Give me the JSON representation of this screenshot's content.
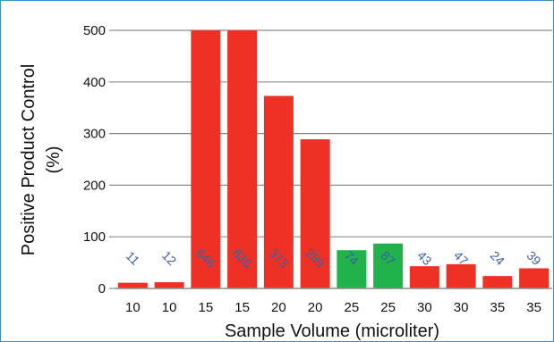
{
  "chart_data": {
    "type": "bar",
    "categories": [
      "10",
      "10",
      "15",
      "15",
      "20",
      "20",
      "25",
      "25",
      "30",
      "30",
      "35",
      "35"
    ],
    "values": [
      11,
      12,
      646,
      636,
      373,
      289,
      74,
      87,
      43,
      47,
      24,
      39
    ],
    "data_labels": [
      "11",
      "12",
      "646",
      "636",
      "373",
      "289",
      "74",
      "87",
      "43",
      "47",
      "24",
      "39"
    ],
    "bar_colors": [
      "#ee3124",
      "#ee3124",
      "#ee3124",
      "#ee3124",
      "#ee3124",
      "#ee3124",
      "#21b24b",
      "#21b24b",
      "#ee3124",
      "#ee3124",
      "#ee3124",
      "#ee3124"
    ],
    "title": "",
    "xlabel": "Sample Volume (microliter)",
    "ylabel_line1": "Positive Product Control",
    "ylabel_line2": "(%)",
    "ylim": [
      0,
      500
    ],
    "yticks": [
      "0",
      "100",
      "200",
      "300",
      "400",
      "500"
    ],
    "grid": true,
    "legend": "none",
    "colors": {
      "border": "#3a8fc8",
      "grid": "#8c8c8c",
      "label": "#3b5fa6"
    }
  }
}
